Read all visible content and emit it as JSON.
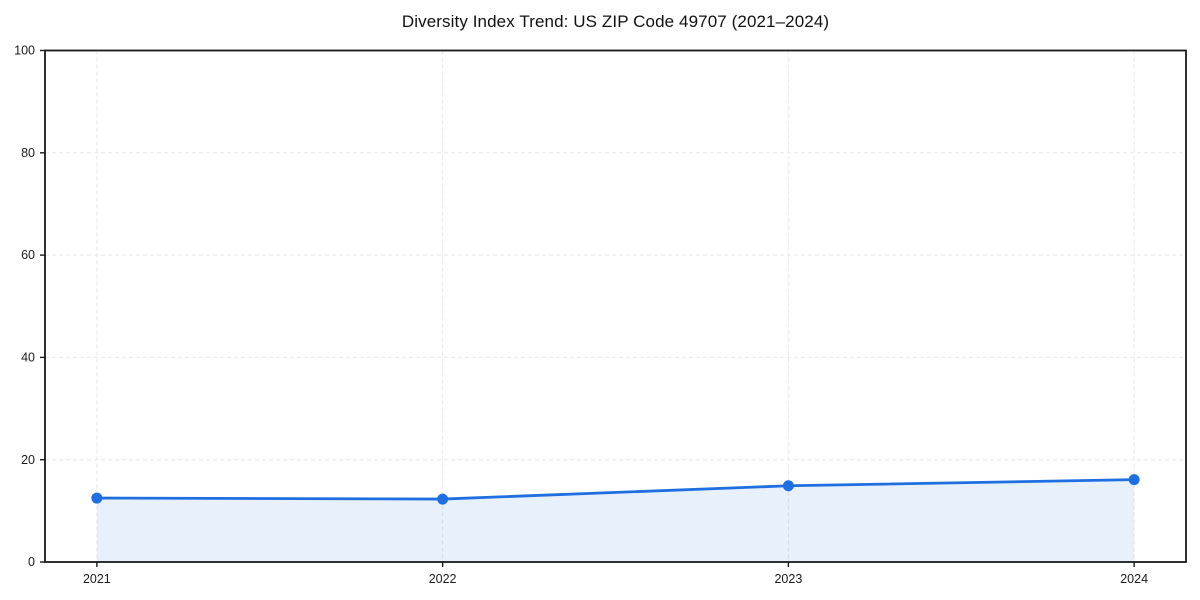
{
  "chart_data": {
    "type": "area",
    "title": "Diversity Index Trend: US ZIP Code 49707 (2021–2024)",
    "x": [
      2021,
      2022,
      2023,
      2024
    ],
    "xticklabels": [
      "2021",
      "2022",
      "2023",
      "2024"
    ],
    "series": [
      {
        "name": "Diversity Index",
        "values": [
          12.5,
          12.3,
          14.9,
          16.1
        ]
      }
    ],
    "xlabel": "",
    "ylabel": "",
    "ylim": [
      0,
      100
    ],
    "yticks": [
      0,
      20,
      40,
      60,
      80,
      100
    ],
    "x_margin_fraction": 0.05,
    "grid": true,
    "grid_style": "dashed",
    "legend": "none",
    "style": {
      "line_color": "#1f6fe0",
      "marker_color": "#1f6fe0",
      "fill_color": "rgba(31, 111, 224, 0.10)",
      "grid_color": "#e7e7e7",
      "spine_color": "#1a1a1a",
      "tick_color": "#1a1a1a",
      "text_color": "#1a1a1a",
      "background": "#ffffff"
    }
  }
}
